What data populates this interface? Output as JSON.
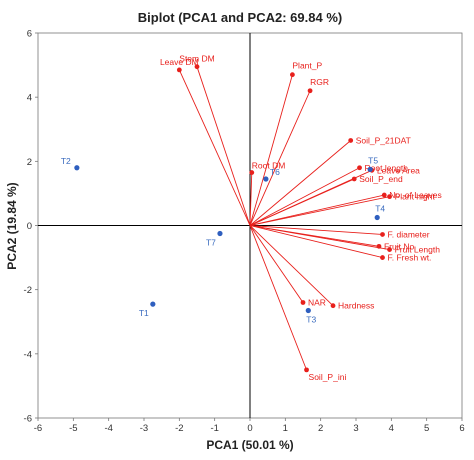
{
  "chart_data": {
    "type": "scatter",
    "title": "Biplot (PCA1 and PCA2: 69.84 %)",
    "xlabel": "PCA1 (50.01 %)",
    "ylabel": "PCA2 (19.84 %)",
    "xlim": [
      -6,
      6
    ],
    "ylim": [
      -6,
      6
    ],
    "xticks": [
      "-6",
      "-5",
      "-4",
      "-3",
      "-2",
      "-1",
      "0",
      "1",
      "2",
      "3",
      "4",
      "5",
      "6"
    ],
    "yticks": [
      "-6",
      "-4",
      "-2",
      "0",
      "2",
      "4",
      "6"
    ],
    "grid": false,
    "colors": {
      "variables": "#e8201c",
      "observations": "#2f5fbf",
      "observation_labels": "#3a6bbf",
      "axis": "#000000"
    },
    "variables": [
      {
        "name": "Stem DM",
        "x": -1.5,
        "y": 4.95
      },
      {
        "name": "Leave DM",
        "x": -2.0,
        "y": 4.85
      },
      {
        "name": "Plant_P",
        "x": 1.2,
        "y": 4.7
      },
      {
        "name": "RGR",
        "x": 1.7,
        "y": 4.2
      },
      {
        "name": "Soil_P_21DAT",
        "x": 2.85,
        "y": 2.65
      },
      {
        "name": "Root length",
        "x": 3.1,
        "y": 1.8
      },
      {
        "name": "Leave Area",
        "x": 3.45,
        "y": 1.72
      },
      {
        "name": "Root DM",
        "x": 0.05,
        "y": 1.65
      },
      {
        "name": "Soil_P_end",
        "x": 2.95,
        "y": 1.45
      },
      {
        "name": "No. of Leaves",
        "x": 3.8,
        "y": 0.95
      },
      {
        "name": "Plant hight",
        "x": 3.95,
        "y": 0.9
      },
      {
        "name": "F. diameter",
        "x": 3.75,
        "y": -0.28
      },
      {
        "name": "Fruit No",
        "x": 3.65,
        "y": -0.65
      },
      {
        "name": "Fruit Length",
        "x": 3.95,
        "y": -0.75
      },
      {
        "name": "F. Fresh wt.",
        "x": 3.75,
        "y": -1.0
      },
      {
        "name": "NAR",
        "x": 1.5,
        "y": -2.4
      },
      {
        "name": "Hardness",
        "x": 2.35,
        "y": -2.5
      },
      {
        "name": "Soil_P_ini",
        "x": 1.6,
        "y": -4.5
      }
    ],
    "observations": [
      {
        "name": "T1",
        "x": -2.75,
        "y": -2.45
      },
      {
        "name": "T2",
        "x": -4.9,
        "y": 1.8
      },
      {
        "name": "T3",
        "x": 1.65,
        "y": -2.65
      },
      {
        "name": "T4",
        "x": 3.6,
        "y": 0.25
      },
      {
        "name": "T5",
        "x": 3.4,
        "y": 1.75
      },
      {
        "name": "T6",
        "x": 0.45,
        "y": 1.45
      },
      {
        "name": "T7",
        "x": -0.85,
        "y": -0.25
      }
    ]
  }
}
